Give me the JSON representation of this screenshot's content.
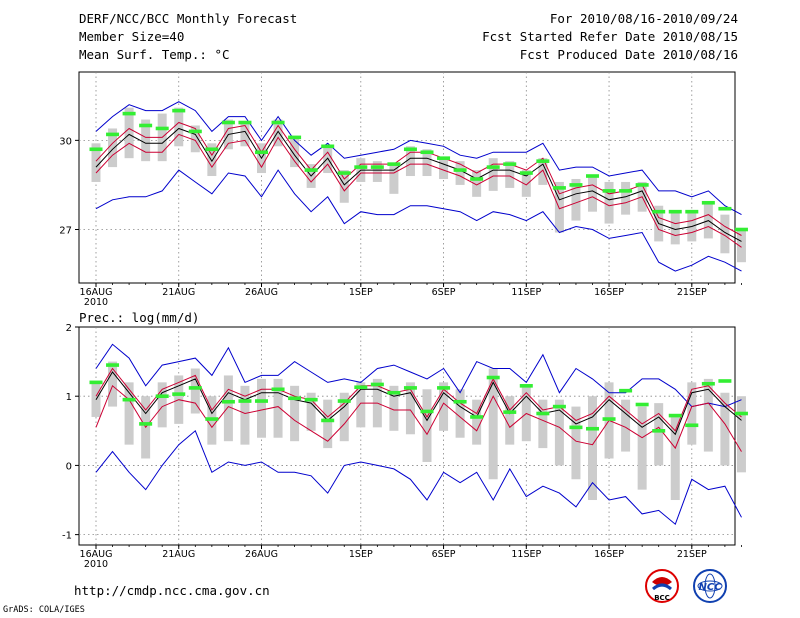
{
  "header": {
    "left": [
      "DERF/NCC/BCC Monthly Forecast",
      "Member Size=40",
      "Mean Surf. Temp.: °C"
    ],
    "right": [
      "For 2010/08/16-2010/09/24",
      "Fcst Started Refer Date 2010/08/15",
      "Fcst Produced Date 2010/08/16"
    ]
  },
  "footer": {
    "url": "http://cmdp.ncc.cma.gov.cn",
    "grads": "GrADS: COLA/IGES",
    "logo_left": "BCC",
    "logo_right": "NCC"
  },
  "colors": {
    "max_min": "#0000cc",
    "ctrl": "#cc0033",
    "mean": "#000000",
    "obs": "#33ee33",
    "box": "#cccccc"
  },
  "chart_data": [
    {
      "type": "line",
      "title": "Mean Surf. Temp.: °C",
      "ylim": [
        25.2,
        32.3
      ],
      "yticks": [
        27,
        30
      ],
      "grid": true,
      "xlabels": [
        "16AUG",
        "21AUG",
        "26AUG",
        "1SEP",
        "6SEP",
        "11SEP",
        "16SEP",
        "21SEP"
      ],
      "xlabel_year": "2010",
      "days": 40,
      "series": [
        {
          "name": "max",
          "values": [
            30.3,
            30.8,
            31.2,
            31.0,
            31.0,
            31.3,
            31.0,
            30.3,
            30.8,
            30.8,
            30.0,
            30.8,
            30.0,
            29.5,
            29.9,
            29.4,
            29.5,
            29.6,
            29.7,
            30.0,
            29.9,
            29.8,
            29.5,
            29.4,
            29.6,
            29.6,
            29.6,
            29.9,
            29.0,
            29.1,
            29.1,
            28.8,
            28.9,
            29.0,
            28.3,
            28.3,
            28.1,
            28.3,
            27.8,
            27.5
          ]
        },
        {
          "name": "min",
          "values": [
            27.7,
            28.0,
            28.1,
            28.1,
            28.3,
            29.0,
            28.6,
            28.2,
            28.9,
            28.8,
            28.1,
            29.0,
            28.2,
            27.6,
            28.1,
            27.2,
            27.6,
            27.5,
            27.5,
            27.8,
            27.8,
            27.7,
            27.6,
            27.3,
            27.6,
            27.5,
            27.3,
            27.6,
            26.9,
            27.1,
            27.0,
            26.7,
            26.8,
            26.9,
            25.9,
            25.6,
            25.8,
            26.1,
            25.9,
            25.6
          ]
        },
        {
          "name": "ctrl",
          "values": [
            28.9,
            29.5,
            29.9,
            29.6,
            29.6,
            30.2,
            30.0,
            29.1,
            29.9,
            30.0,
            29.1,
            30.1,
            29.3,
            28.6,
            29.2,
            28.3,
            28.9,
            28.9,
            28.9,
            29.2,
            29.2,
            29.0,
            28.8,
            28.5,
            28.8,
            28.8,
            28.5,
            29.0,
            27.7,
            27.9,
            28.1,
            27.8,
            27.9,
            28.1,
            27.0,
            26.8,
            26.9,
            27.1,
            26.8,
            26.4
          ]
        },
        {
          "name": "mean",
          "values": [
            29.1,
            29.7,
            30.2,
            29.9,
            29.9,
            30.4,
            30.2,
            29.3,
            30.2,
            30.3,
            29.4,
            30.3,
            29.5,
            28.8,
            29.4,
            28.5,
            29.0,
            29.0,
            29.0,
            29.4,
            29.4,
            29.2,
            29.0,
            28.7,
            29.0,
            29.0,
            28.8,
            29.2,
            28.0,
            28.2,
            28.3,
            28.0,
            28.1,
            28.3,
            27.2,
            27.0,
            27.1,
            27.3,
            26.9,
            26.6
          ]
        },
        {
          "name": "ctrl_upper",
          "values": [
            29.3,
            29.9,
            30.4,
            30.1,
            30.1,
            30.6,
            30.4,
            29.5,
            30.4,
            30.5,
            29.6,
            30.5,
            29.7,
            29.0,
            29.6,
            28.7,
            29.2,
            29.2,
            29.2,
            29.6,
            29.6,
            29.4,
            29.2,
            28.9,
            29.2,
            29.2,
            29.0,
            29.4,
            28.2,
            28.4,
            28.5,
            28.2,
            28.3,
            28.5,
            27.4,
            27.2,
            27.3,
            27.5,
            27.1,
            26.8
          ]
        }
      ],
      "box_high": [
        29.9,
        30.4,
        31.1,
        30.7,
        30.9,
        31.1,
        30.5,
        29.9,
        30.7,
        30.6,
        29.9,
        30.7,
        30.1,
        29.2,
        29.8,
        29.0,
        29.4,
        29.3,
        29.2,
        29.8,
        29.7,
        29.4,
        29.3,
        29.0,
        29.4,
        29.3,
        29.0,
        29.4,
        28.6,
        28.7,
        28.8,
        28.6,
        28.6,
        28.6,
        27.8,
        27.6,
        27.6,
        27.9,
        27.5,
        27.0
      ],
      "box_low": [
        28.6,
        29.1,
        29.4,
        29.3,
        29.3,
        29.8,
        29.6,
        28.8,
        29.7,
        29.8,
        28.9,
        29.8,
        29.1,
        28.4,
        28.9,
        27.9,
        28.6,
        28.6,
        28.2,
        28.8,
        28.8,
        28.7,
        28.5,
        28.1,
        28.3,
        28.4,
        28.1,
        28.5,
        26.9,
        27.3,
        27.6,
        27.2,
        27.5,
        27.6,
        26.6,
        26.5,
        26.6,
        26.7,
        26.2,
        25.9
      ],
      "observed": [
        29.7,
        30.2,
        30.9,
        30.5,
        30.4,
        31.0,
        30.3,
        29.7,
        30.6,
        30.6,
        29.6,
        30.6,
        30.1,
        29.0,
        29.8,
        28.9,
        29.1,
        29.1,
        29.2,
        29.7,
        29.6,
        29.4,
        29.0,
        28.7,
        29.1,
        29.2,
        28.9,
        29.3,
        28.4,
        28.5,
        28.8,
        28.3,
        28.3,
        28.5,
        27.6,
        27.6,
        27.6,
        27.9,
        27.7,
        27.0
      ]
    },
    {
      "type": "line",
      "title": "Prec.: log(mm/d)",
      "ylim": [
        -1.15,
        2.0
      ],
      "yticks": [
        -1,
        0,
        1,
        2
      ],
      "grid": true,
      "xlabels": [
        "16AUG",
        "21AUG",
        "26AUG",
        "1SEP",
        "6SEP",
        "11SEP",
        "16SEP",
        "21SEP"
      ],
      "xlabel_year": "2010",
      "days": 40,
      "series": [
        {
          "name": "max",
          "values": [
            1.4,
            1.75,
            1.55,
            1.15,
            1.45,
            1.5,
            1.55,
            1.3,
            1.7,
            1.2,
            1.3,
            1.3,
            1.5,
            1.35,
            1.2,
            1.25,
            1.2,
            1.4,
            1.45,
            1.35,
            1.25,
            1.4,
            1.05,
            1.5,
            1.4,
            1.4,
            1.2,
            1.6,
            1.05,
            1.4,
            1.25,
            1.05,
            1.05,
            1.25,
            1.25,
            1.1,
            0.85,
            0.9,
            0.85,
            0.95
          ]
        },
        {
          "name": "min",
          "values": [
            -0.1,
            0.2,
            -0.1,
            -0.35,
            0.0,
            0.3,
            0.5,
            -0.1,
            0.05,
            0.0,
            0.05,
            -0.1,
            -0.1,
            -0.15,
            -0.4,
            0.0,
            0.05,
            0.0,
            -0.05,
            -0.2,
            -0.5,
            -0.1,
            -0.25,
            -0.1,
            -0.5,
            -0.05,
            -0.45,
            -0.3,
            -0.4,
            -0.6,
            -0.25,
            -0.5,
            -0.45,
            -0.7,
            -0.65,
            -0.85,
            -0.2,
            -0.35,
            -0.3,
            -0.75
          ]
        },
        {
          "name": "ctrl",
          "values": [
            0.55,
            1.15,
            0.95,
            0.55,
            0.85,
            0.95,
            0.9,
            0.55,
            0.85,
            0.75,
            0.8,
            0.85,
            0.65,
            0.5,
            0.35,
            0.6,
            0.9,
            0.9,
            0.8,
            0.8,
            0.45,
            0.9,
            0.7,
            0.5,
            1.0,
            0.55,
            0.75,
            0.65,
            0.55,
            0.35,
            0.3,
            0.65,
            0.55,
            0.4,
            0.55,
            0.25,
            0.85,
            0.9,
            0.6,
            0.2
          ]
        },
        {
          "name": "mean",
          "values": [
            0.95,
            1.35,
            1.05,
            0.75,
            1.05,
            1.15,
            1.25,
            0.75,
            1.05,
            0.95,
            1.05,
            1.05,
            0.95,
            0.9,
            0.65,
            0.85,
            1.1,
            1.1,
            1.0,
            1.05,
            0.65,
            1.05,
            0.85,
            0.7,
            1.2,
            0.75,
            1.0,
            0.75,
            0.8,
            0.6,
            0.7,
            0.95,
            0.75,
            0.55,
            0.7,
            0.45,
            1.05,
            1.1,
            0.85,
            0.65
          ]
        },
        {
          "name": "ctrl_upper",
          "values": [
            1.0,
            1.4,
            1.1,
            0.8,
            1.1,
            1.2,
            1.3,
            0.8,
            1.1,
            1.0,
            1.1,
            1.1,
            1.0,
            0.95,
            0.7,
            0.9,
            1.15,
            1.15,
            1.05,
            1.1,
            0.7,
            1.1,
            0.9,
            0.75,
            1.25,
            0.8,
            1.05,
            0.8,
            0.85,
            0.65,
            0.75,
            1.0,
            0.8,
            0.6,
            0.75,
            0.5,
            1.1,
            1.15,
            0.9,
            0.7
          ]
        }
      ],
      "box_high": [
        1.2,
        1.5,
        1.2,
        1.0,
        1.2,
        1.3,
        1.4,
        1.0,
        1.3,
        1.15,
        1.25,
        1.25,
        1.15,
        1.05,
        0.95,
        1.05,
        1.2,
        1.25,
        1.15,
        1.2,
        1.1,
        1.2,
        1.1,
        0.95,
        1.4,
        1.0,
        1.15,
        0.95,
        0.95,
        0.85,
        1.0,
        1.2,
        0.95,
        0.85,
        0.9,
        0.7,
        1.2,
        1.25,
        1.05,
        1.0
      ],
      "box_low": [
        0.7,
        0.85,
        0.3,
        0.1,
        0.55,
        0.6,
        0.75,
        0.3,
        0.35,
        0.3,
        0.4,
        0.4,
        0.35,
        0.5,
        0.25,
        0.35,
        0.55,
        0.55,
        0.5,
        0.45,
        0.05,
        0.5,
        0.4,
        0.3,
        -0.2,
        0.3,
        0.35,
        0.25,
        0.0,
        -0.2,
        -0.5,
        0.1,
        0.2,
        -0.35,
        0.0,
        -0.5,
        0.3,
        0.2,
        0.0,
        -0.1
      ],
      "observed": [
        1.2,
        1.45,
        0.95,
        0.6,
        1.0,
        1.03,
        1.12,
        0.67,
        0.92,
        0.93,
        0.93,
        1.1,
        0.97,
        0.95,
        0.65,
        0.93,
        1.13,
        1.17,
        1.05,
        1.12,
        0.78,
        1.12,
        0.92,
        0.7,
        1.27,
        0.77,
        1.15,
        0.75,
        0.85,
        0.55,
        0.53,
        0.67,
        1.08,
        0.88,
        0.5,
        0.72,
        0.58,
        1.18,
        1.22,
        0.75
      ]
    }
  ]
}
